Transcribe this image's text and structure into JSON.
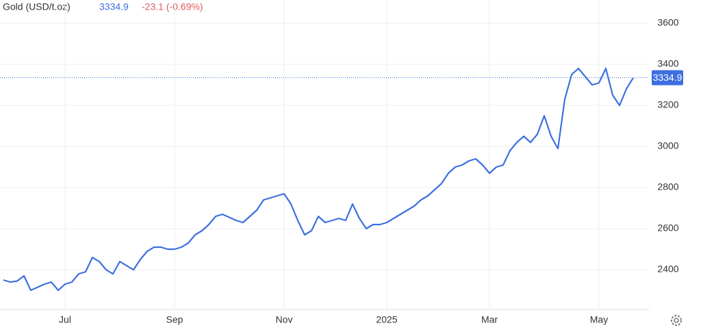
{
  "chart_data": {
    "type": "line",
    "title": "Gold (USD/t.oz)",
    "last_price": "3334.9",
    "change": "-23.1 (-0.69%)",
    "color": "#3d6fe0",
    "categories": [
      null,
      null,
      null,
      null,
      null,
      null,
      null,
      null,
      null,
      "Jul",
      null,
      null,
      null,
      null,
      null,
      null,
      null,
      null,
      null,
      null,
      null,
      null,
      null,
      null,
      null,
      "Sep",
      null,
      null,
      null,
      null,
      null,
      null,
      null,
      null,
      null,
      null,
      null,
      null,
      null,
      null,
      null,
      "Nov",
      null,
      null,
      null,
      null,
      null,
      null,
      null,
      null,
      null,
      null,
      null,
      null,
      null,
      null,
      "2025",
      null,
      null,
      null,
      null,
      null,
      null,
      null,
      null,
      null,
      null,
      null,
      null,
      null,
      null,
      "Mar",
      null,
      null,
      null,
      null,
      null,
      null,
      null,
      null,
      null,
      null,
      null,
      null,
      null,
      null,
      null,
      "May",
      null,
      null,
      null,
      null,
      null
    ],
    "values": [
      2350,
      2340,
      2345,
      2370,
      2300,
      2315,
      2330,
      2340,
      2300,
      2330,
      2340,
      2380,
      2390,
      2460,
      2440,
      2400,
      2380,
      2440,
      2420,
      2400,
      2450,
      2490,
      2510,
      2510,
      2500,
      2500,
      2510,
      2530,
      2570,
      2590,
      2620,
      2660,
      2670,
      2655,
      2640,
      2630,
      2660,
      2690,
      2740,
      2750,
      2760,
      2770,
      2720,
      2640,
      2570,
      2590,
      2660,
      2630,
      2640,
      2650,
      2640,
      2720,
      2650,
      2600,
      2620,
      2620,
      2630,
      2650,
      2670,
      2690,
      2710,
      2740,
      2760,
      2790,
      2820,
      2870,
      2900,
      2910,
      2930,
      2940,
      2910,
      2870,
      2900,
      2910,
      2980,
      3020,
      3050,
      3020,
      3060,
      3150,
      3050,
      2990,
      3230,
      3350,
      3380,
      3340,
      3300,
      3310,
      3380,
      3250,
      3200,
      3280,
      3334.9
    ],
    "ylim": [
      2206.7,
      3713.3
    ],
    "yticks": [
      2400,
      2600,
      2800,
      3000,
      3200,
      3400,
      3600
    ],
    "grid": true
  }
}
